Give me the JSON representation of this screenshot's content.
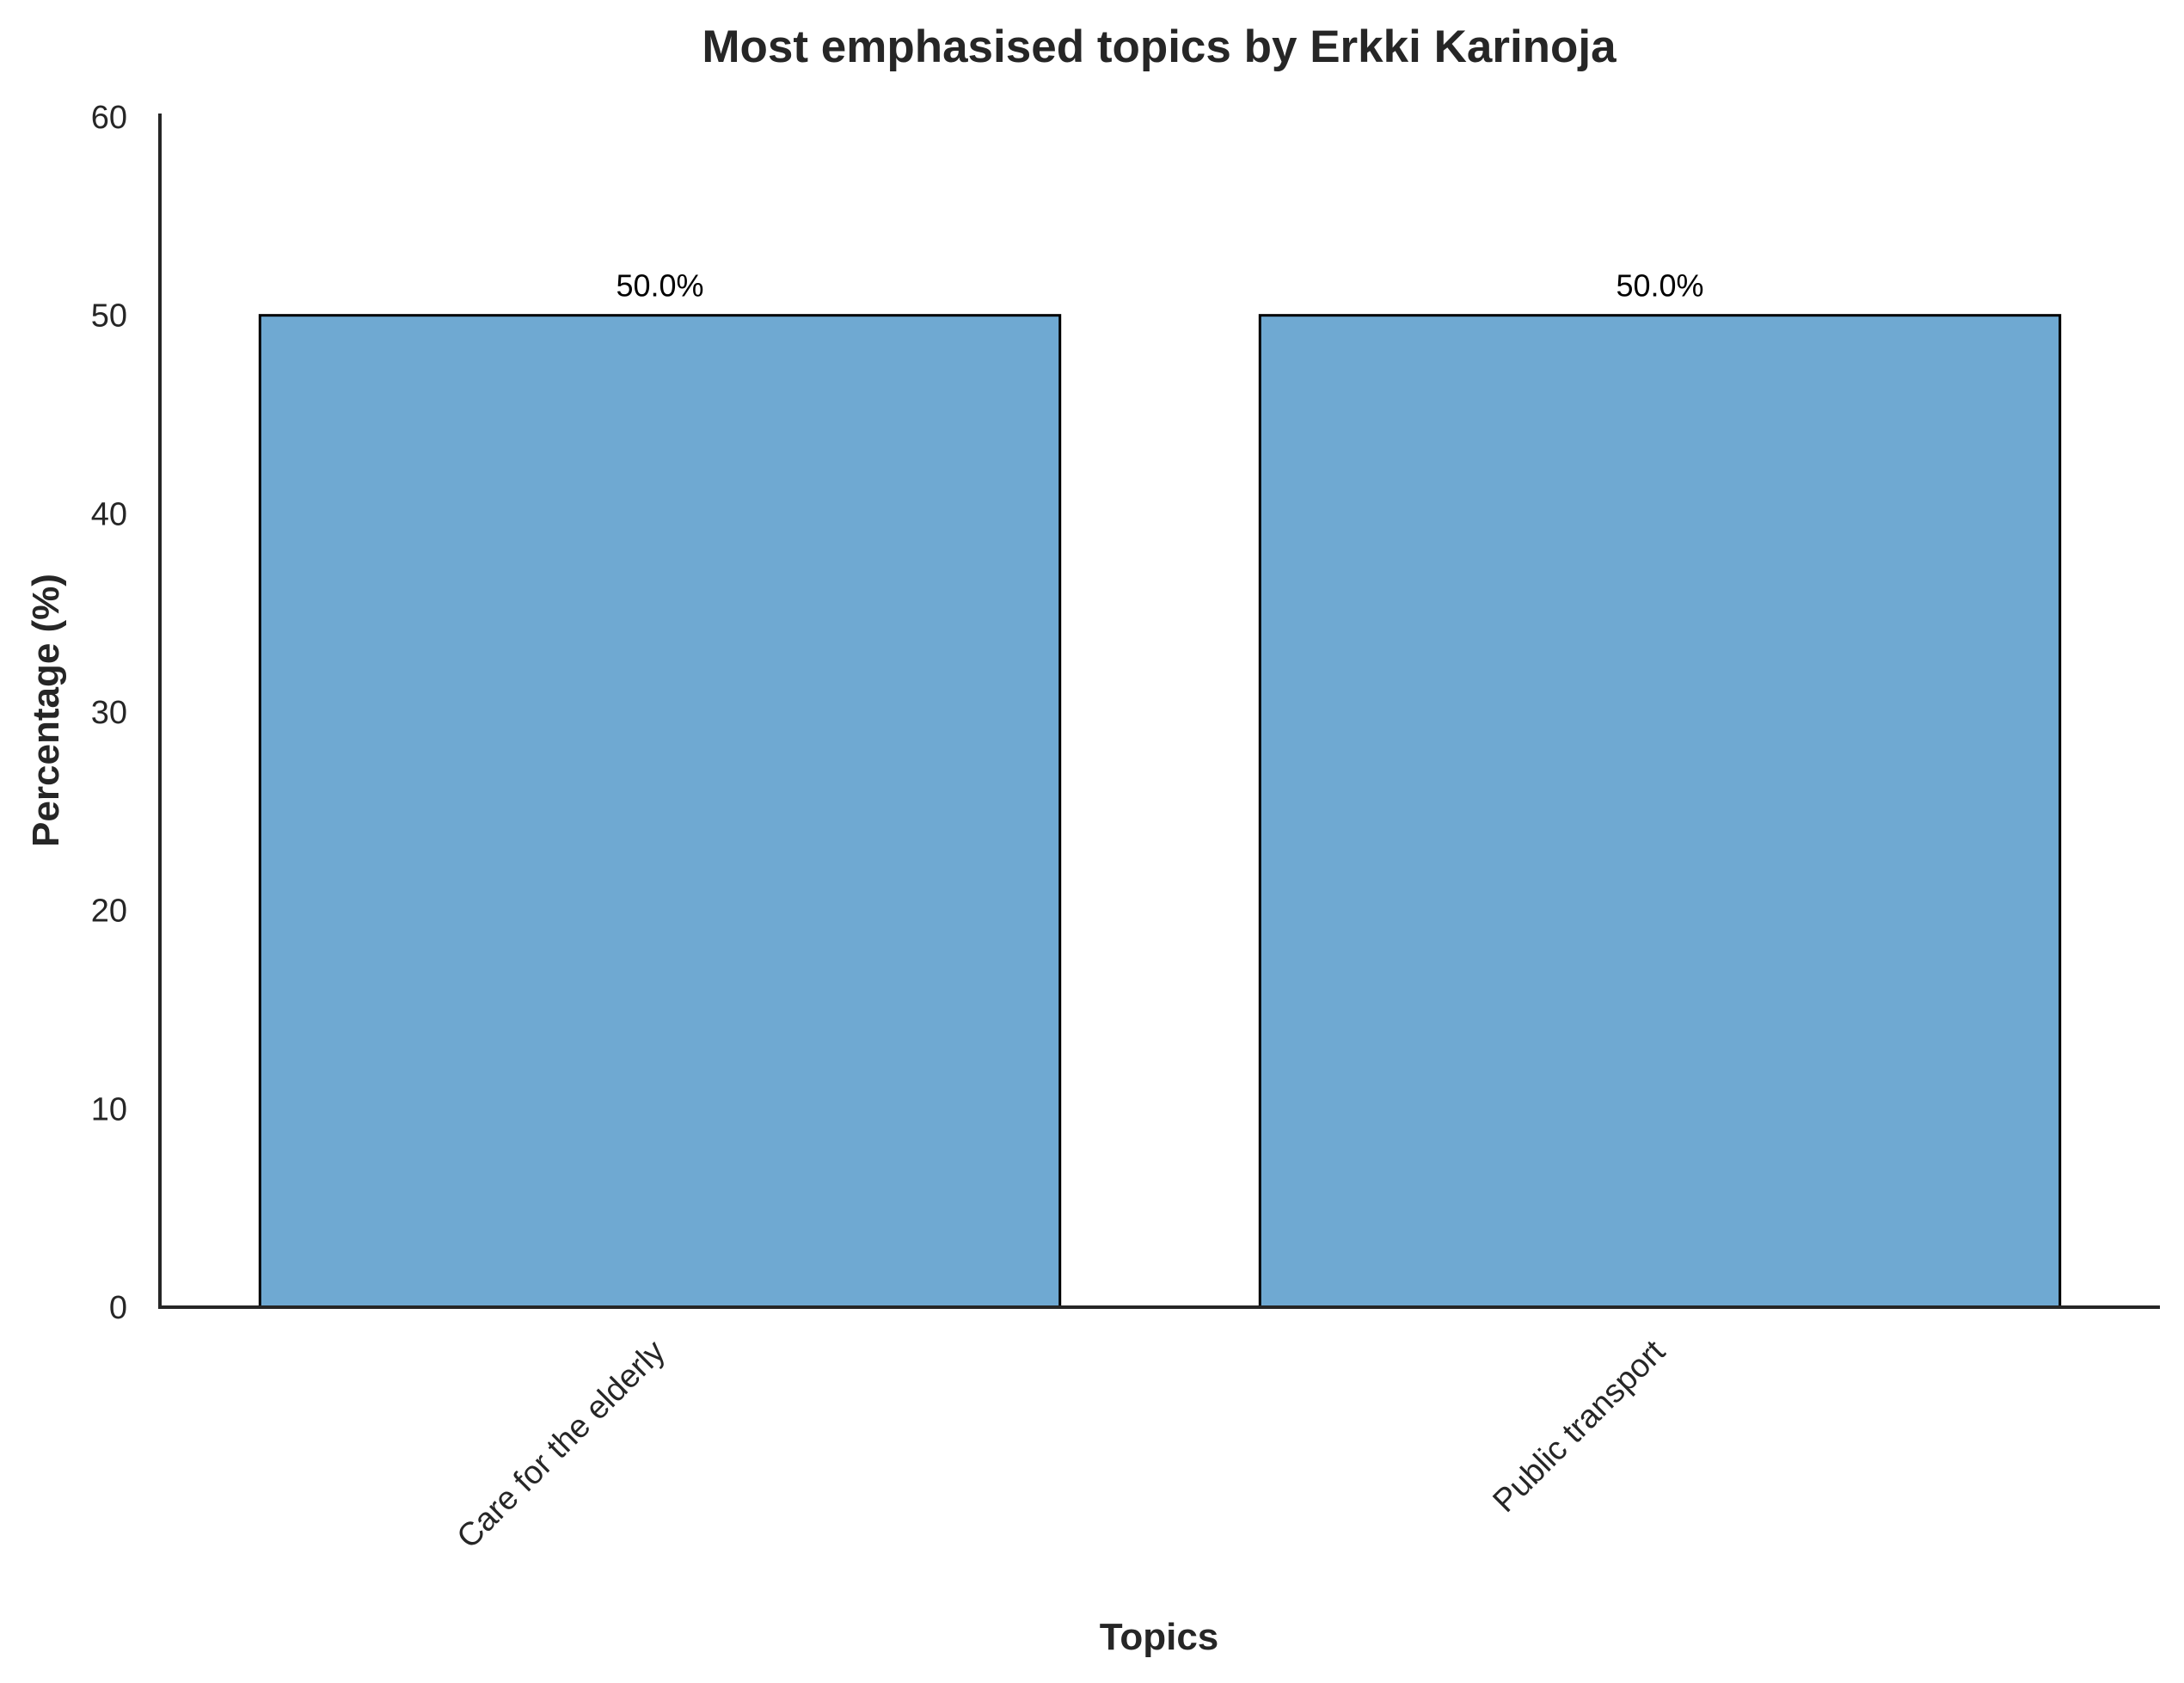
{
  "chart_data": {
    "type": "bar",
    "title": "Most emphasised topics by Erkki Karinoja",
    "xlabel": "Topics",
    "ylabel": "Percentage (%)",
    "categories": [
      "Care for the elderly",
      "Public transport"
    ],
    "values": [
      50.0,
      50.0
    ],
    "value_labels": [
      "50.0%",
      "50.0%"
    ],
    "ylim": [
      0,
      60
    ],
    "yticks": [
      0,
      10,
      20,
      30,
      40,
      50,
      60
    ],
    "ytick_labels": [
      "0",
      "10",
      "20",
      "30",
      "40",
      "50",
      "60"
    ],
    "grid": false,
    "legend": "none",
    "bar_color": "#6fa9d2",
    "bar_edge_color": "#000000"
  }
}
